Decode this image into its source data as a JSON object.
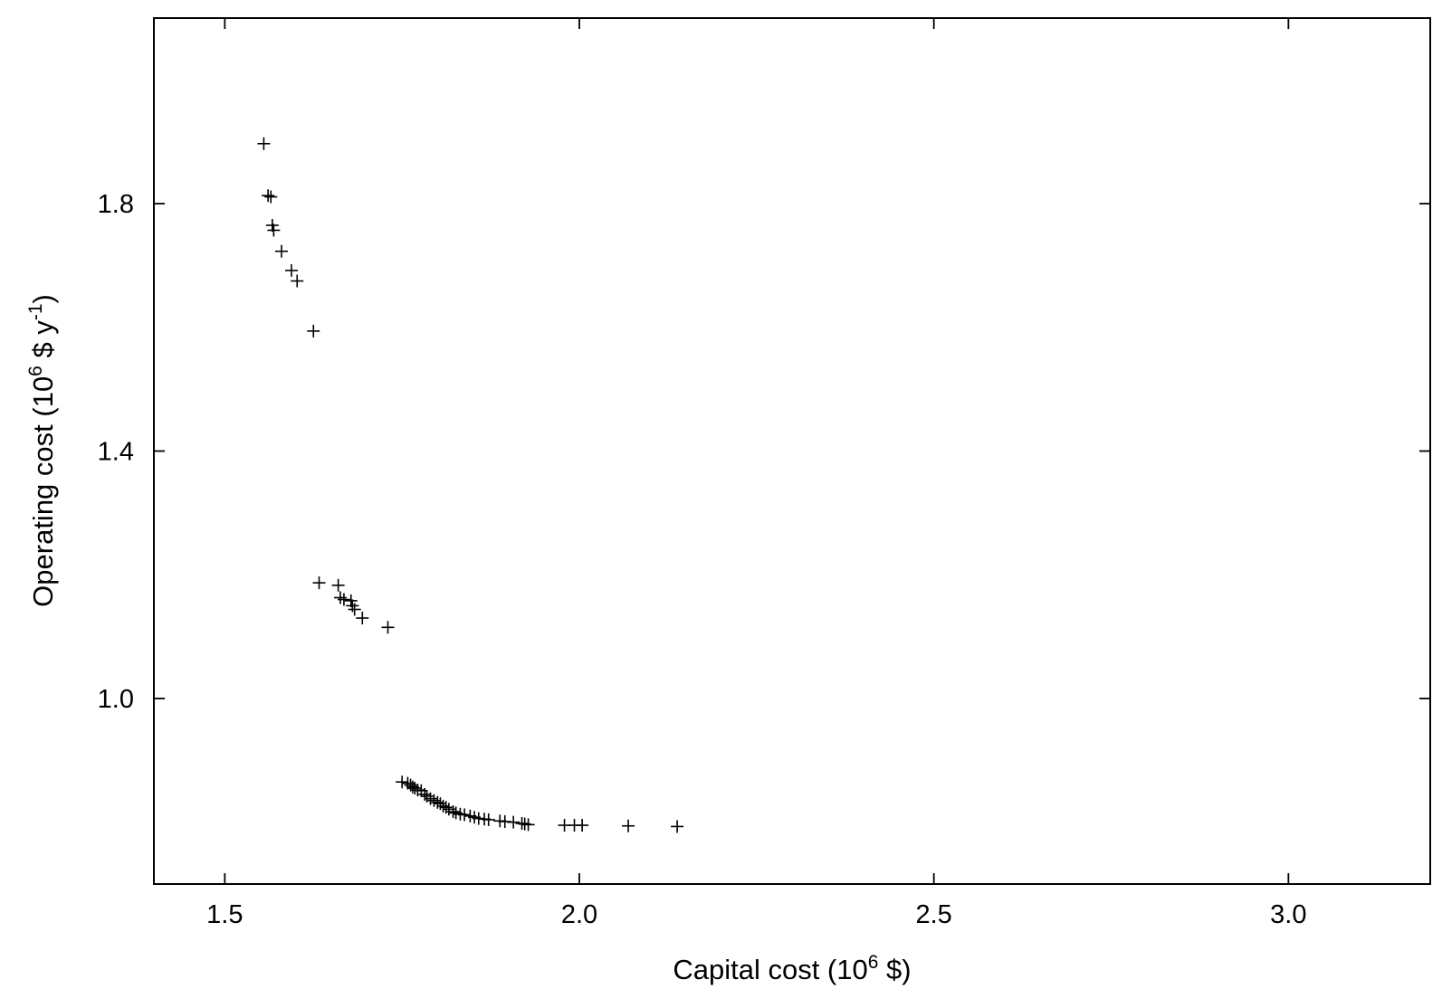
{
  "chart_data": {
    "type": "scatter",
    "title": "",
    "xlabel": {
      "pre": "Capital cost (10",
      "sup": "6",
      "post": " $)"
    },
    "ylabel": {
      "pre": "Operating cost (10",
      "sup1": "6",
      "mid": " $ y",
      "sup2": "-1",
      "post": ")"
    },
    "xlim": [
      1.4,
      3.2
    ],
    "ylim": [
      0.7,
      2.1
    ],
    "xticks": [
      {
        "value": 1.5,
        "label": "1.5"
      },
      {
        "value": 2.0,
        "label": "2.0"
      },
      {
        "value": 2.5,
        "label": "2.5"
      },
      {
        "value": 3.0,
        "label": "3.0"
      }
    ],
    "yticks": [
      {
        "value": 1.0,
        "label": "1.0"
      },
      {
        "value": 1.4,
        "label": "1.4"
      },
      {
        "value": 1.8,
        "label": "1.8"
      }
    ],
    "grid": false,
    "marker": "plus",
    "series": [
      {
        "points": [
          [
            1.555,
            1.897
          ],
          [
            1.561,
            1.813
          ],
          [
            1.565,
            1.811
          ],
          [
            1.567,
            1.765
          ],
          [
            1.569,
            1.757
          ],
          [
            1.58,
            1.723
          ],
          [
            1.594,
            1.692
          ],
          [
            1.602,
            1.675
          ],
          [
            1.625,
            1.594
          ],
          [
            1.633,
            1.187
          ],
          [
            1.66,
            1.183
          ],
          [
            1.663,
            1.163
          ],
          [
            1.668,
            1.16
          ],
          [
            1.678,
            1.158
          ],
          [
            1.68,
            1.15
          ],
          [
            1.683,
            1.144
          ],
          [
            1.694,
            1.13
          ],
          [
            1.73,
            1.115
          ],
          [
            1.75,
            0.865
          ],
          [
            1.758,
            0.863
          ],
          [
            1.762,
            0.86
          ],
          [
            1.765,
            0.857
          ],
          [
            1.768,
            0.855
          ],
          [
            1.772,
            0.852
          ],
          [
            1.777,
            0.851
          ],
          [
            1.782,
            0.845
          ],
          [
            1.785,
            0.842
          ],
          [
            1.79,
            0.838
          ],
          [
            1.795,
            0.835
          ],
          [
            1.8,
            0.832
          ],
          [
            1.804,
            0.83
          ],
          [
            1.808,
            0.826
          ],
          [
            1.812,
            0.824
          ],
          [
            1.816,
            0.821
          ],
          [
            1.822,
            0.817
          ],
          [
            1.826,
            0.815
          ],
          [
            1.832,
            0.813
          ],
          [
            1.838,
            0.812
          ],
          [
            1.846,
            0.81
          ],
          [
            1.852,
            0.808
          ],
          [
            1.858,
            0.806
          ],
          [
            1.866,
            0.805
          ],
          [
            1.872,
            0.804
          ],
          [
            1.888,
            0.802
          ],
          [
            1.895,
            0.801
          ],
          [
            1.907,
            0.8
          ],
          [
            1.919,
            0.798
          ],
          [
            1.923,
            0.797
          ],
          [
            1.928,
            0.796
          ],
          [
            1.979,
            0.795
          ],
          [
            1.993,
            0.795
          ],
          [
            2.004,
            0.795
          ],
          [
            2.069,
            0.794
          ],
          [
            2.138,
            0.793
          ]
        ]
      }
    ]
  }
}
